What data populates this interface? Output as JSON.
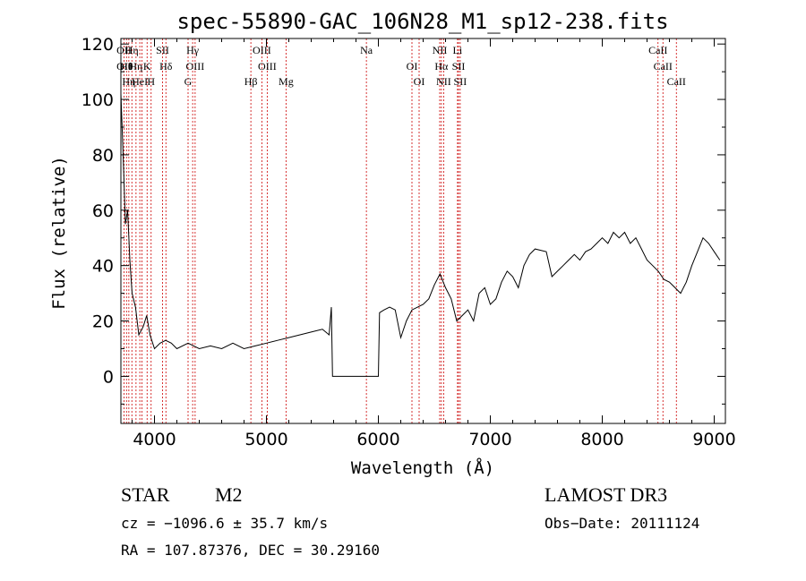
{
  "chart_data": {
    "type": "line",
    "title": "spec-55890-GAC_106N28_M1_sp12-238.fits",
    "xlabel": "Wavelength (Å)",
    "ylabel": "Flux (relative)",
    "xlim": [
      3700,
      9100
    ],
    "ylim": [
      -17,
      122
    ],
    "xticks": [
      4000,
      5000,
      6000,
      7000,
      8000,
      9000
    ],
    "yticks": [
      0,
      20,
      40,
      60,
      80,
      100,
      120
    ],
    "series": [
      {
        "x": [
          3700,
          3720,
          3740,
          3760,
          3780,
          3800,
          3830,
          3860,
          3900,
          3930,
          3960,
          4000,
          4050,
          4100,
          4150,
          4200,
          4300,
          4400,
          4500,
          4600,
          4700,
          4800,
          4900,
          5000,
          5100,
          5200,
          5300,
          5400,
          5500,
          5560,
          5580,
          5590,
          5700,
          5800,
          5900,
          6000,
          6010,
          6050,
          6100,
          6150,
          6200,
          6250,
          6300,
          6350,
          6400,
          6450,
          6500,
          6550,
          6600,
          6650,
          6700,
          6750,
          6800,
          6850,
          6900,
          6950,
          7000,
          7050,
          7100,
          7150,
          7200,
          7250,
          7300,
          7350,
          7400,
          7500,
          7550,
          7600,
          7650,
          7700,
          7750,
          7800,
          7850,
          7900,
          7950,
          8000,
          8050,
          8100,
          8150,
          8200,
          8250,
          8300,
          8350,
          8400,
          8450,
          8500,
          8550,
          8600,
          8650,
          8700,
          8750,
          8800,
          8850,
          8900,
          8950,
          9000,
          9050
        ],
        "y": [
          102,
          80,
          55,
          60,
          42,
          30,
          25,
          15,
          18,
          22,
          15,
          10,
          12,
          13,
          12,
          10,
          12,
          10,
          11,
          10,
          12,
          10,
          11,
          12,
          13,
          14,
          15,
          16,
          17,
          15,
          25,
          0,
          0,
          0,
          0,
          0,
          23,
          24,
          25,
          24,
          14,
          20,
          24,
          25,
          26,
          28,
          33,
          37,
          32,
          28,
          20,
          22,
          24,
          20,
          30,
          32,
          26,
          28,
          34,
          38,
          36,
          32,
          40,
          44,
          46,
          45,
          36,
          38,
          40,
          42,
          44,
          42,
          45,
          46,
          48,
          50,
          48,
          52,
          50,
          52,
          48,
          50,
          46,
          42,
          40,
          38,
          35,
          34,
          32,
          30,
          34,
          40,
          45,
          50,
          48,
          45,
          42
        ]
      }
    ],
    "line_groups": [
      {
        "wl": 3728,
        "labels": [
          "OII",
          "OII"
        ]
      },
      {
        "wl": 3750,
        "labels": [
          "Hθ"
        ]
      },
      {
        "wl": 3771,
        "labels": [
          "Hη"
        ]
      },
      {
        "wl": 3798,
        "labels": [
          "Hη"
        ]
      },
      {
        "wl": 3835,
        "labels": [
          "Hη"
        ]
      },
      {
        "wl": 3869,
        "labels": [
          "HeI"
        ]
      },
      {
        "wl": 3889,
        "labels": []
      },
      {
        "wl": 3934,
        "labels": [
          "K"
        ]
      },
      {
        "wl": 3970,
        "labels": [
          "H"
        ]
      },
      {
        "wl": 4072,
        "labels": [
          "SII"
        ]
      },
      {
        "wl": 4102,
        "labels": [
          "Hδ"
        ]
      },
      {
        "wl": 4300,
        "labels": [
          "G"
        ]
      },
      {
        "wl": 4341,
        "labels": [
          "Hγ"
        ]
      },
      {
        "wl": 4363,
        "labels": [
          "OIII"
        ]
      },
      {
        "wl": 4861,
        "labels": [
          "Hβ"
        ]
      },
      {
        "wl": 4959,
        "labels": [
          "OIII"
        ]
      },
      {
        "wl": 5007,
        "labels": [
          "OIII"
        ]
      },
      {
        "wl": 5175,
        "labels": [
          "Mg"
        ]
      },
      {
        "wl": 5893,
        "labels": [
          "Na"
        ]
      },
      {
        "wl": 6300,
        "labels": [
          "OI"
        ]
      },
      {
        "wl": 6364,
        "labels": [
          "OI"
        ]
      },
      {
        "wl": 6548,
        "labels": [
          "NII"
        ]
      },
      {
        "wl": 6563,
        "labels": [
          "Hα"
        ]
      },
      {
        "wl": 6583,
        "labels": [
          "NII"
        ]
      },
      {
        "wl": 6707,
        "labels": [
          "Li"
        ]
      },
      {
        "wl": 6716,
        "labels": [
          "SII"
        ]
      },
      {
        "wl": 6731,
        "labels": [
          "SII"
        ]
      },
      {
        "wl": 8498,
        "labels": [
          "CaII"
        ]
      },
      {
        "wl": 8542,
        "labels": [
          "CaII"
        ]
      },
      {
        "wl": 8662,
        "labels": [
          "CaII"
        ]
      }
    ]
  },
  "footer": {
    "object_class": "STAR",
    "subclass": "M2",
    "survey": "LAMOST DR3",
    "cz_line": "cz = −1096.6 ± 35.7 km/s",
    "obs_date": "Obs−Date: 20111124",
    "radec": "RA = 107.87376, DEC =  30.29160"
  },
  "colors": {
    "spectrum": "#000000",
    "line_marker": "#cc0000"
  }
}
